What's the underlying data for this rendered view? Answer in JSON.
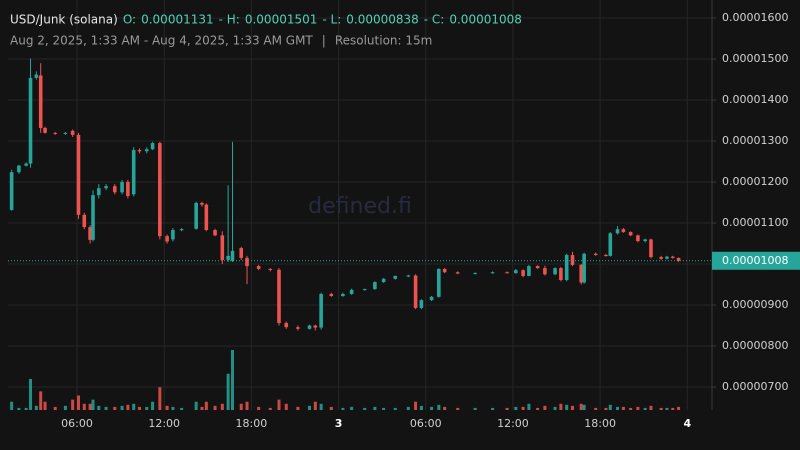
{
  "chart_data": {
    "type": "candlestick",
    "title": "USD/Junk (solana)",
    "summary": [
      {
        "label": "O:",
        "value": 1.131e-05
      },
      {
        "label": "- H:",
        "value": 1.501e-05
      },
      {
        "label": "- L:",
        "value": 8.38e-06
      },
      {
        "label": "- C:",
        "value": 1.008e-05
      }
    ],
    "range": "Aug 2, 2025, 1:33 AM - Aug 4, 2025, 1:33 AM GMT",
    "separator": "|",
    "resolution": "Resolution: 15m",
    "watermark": "defined.fi",
    "up_color": "#26a69a",
    "down_color": "#ef5350",
    "grid": true,
    "xlim": [
      1.25,
      49.7
    ],
    "xticks": [
      {
        "value": 6,
        "label": "06:00"
      },
      {
        "value": 12,
        "label": "12:00"
      },
      {
        "value": 18,
        "label": "18:00"
      },
      {
        "value": 24,
        "label": "3"
      },
      {
        "value": 30,
        "label": "06:00"
      },
      {
        "value": 36,
        "label": "12:00"
      },
      {
        "value": 42,
        "label": "18:00"
      },
      {
        "value": 48,
        "label": "4"
      }
    ],
    "ylim": [
      6.44e-06,
      1.644e-05
    ],
    "yticks": [
      {
        "value": 1.6e-05,
        "label": "0.00001600"
      },
      {
        "value": 1.5e-05,
        "label": "0.00001500"
      },
      {
        "value": 1.4e-05,
        "label": "0.00001400"
      },
      {
        "value": 1.3e-05,
        "label": "0.00001300"
      },
      {
        "value": 1.2e-05,
        "label": "0.00001200"
      },
      {
        "value": 1.1e-05,
        "label": "0.00001100"
      },
      {
        "value": 1e-05,
        "label": "0.00001000"
      },
      {
        "value": 9e-06,
        "label": "0.00000900"
      },
      {
        "value": 8e-06,
        "label": "0.00000800"
      },
      {
        "value": 7e-06,
        "label": "0.00000700"
      }
    ],
    "x": [
      1.5,
      2.0,
      2.5,
      2.8,
      3.2,
      3.5,
      3.8,
      4.5,
      5.2,
      5.7,
      6.1,
      6.5,
      6.9,
      7.1,
      7.5,
      8.0,
      8.6,
      9.1,
      9.5,
      9.9,
      10.3,
      10.8,
      11.2,
      11.7,
      12.2,
      12.6,
      13.2,
      14.2,
      14.6,
      14.9,
      15.5,
      16.0,
      16.4,
      16.7,
      17.3,
      17.7,
      18.5,
      19.3,
      19.9,
      20.4,
      21.2,
      22.0,
      22.4,
      22.8,
      23.5,
      24.3,
      24.9,
      25.8,
      26.5,
      27.1,
      27.9,
      28.8,
      29.3,
      29.7,
      30.4,
      30.9,
      31.3,
      32.2,
      33.4,
      34.6,
      35.6,
      36.2,
      36.7,
      37.1,
      37.7,
      38.2,
      38.9,
      39.3,
      39.7,
      40.1,
      40.7,
      40.9,
      41.7,
      42.4,
      42.7,
      43.2,
      43.6,
      44.1,
      44.6,
      45.1,
      45.5,
      46.2,
      46.6,
      47.0,
      47.4
    ],
    "open": [
      1.132e-05,
      1.224e-05,
      1.24e-05,
      1.245e-05,
      1.454e-05,
      1.46e-05,
      1.332e-05,
      1.32e-05,
      1.318e-05,
      1.325e-05,
      1.315e-05,
      1.12e-05,
      1.09e-05,
      1.059e-05,
      1.168e-05,
      1.185e-05,
      1.19e-05,
      1.175e-05,
      1.2e-05,
      1.17e-05,
      1.278e-05,
      1.275e-05,
      1.28e-05,
      1.295e-05,
      1.068e-05,
      1.06e-05,
      1.083e-05,
      1.086e-05,
      1.149e-05,
      1.145e-05,
      1.083e-05,
      1.07e-05,
      1.01e-05,
      1.008e-05,
      1.039e-05,
      1.015e-05,
      9.95e-06,
      9.88e-06,
      9.86e-06,
      8.56e-06,
      8.46e-06,
      8.42e-06,
      8.5e-06,
      8.45e-06,
      9.27e-06,
      9.22e-06,
      9.27e-06,
      9.37e-06,
      9.39e-06,
      9.56e-06,
      9.64e-06,
      9.71e-06,
      9.72e-06,
      8.93e-06,
      9.12e-06,
      9.2e-06,
      9.88e-06,
      9.8e-06,
      9.77e-06,
      9.78e-06,
      9.8e-06,
      9.78e-06,
      9.85e-06,
      9.71e-06,
      9.95e-06,
      9.9e-06,
      9.75e-06,
      9.9e-06,
      9.61e-06,
      1.022e-05,
      9.98e-06,
      9.55e-06,
      1.025e-05,
      1.022e-05,
      1.02e-05,
      1.075e-05,
      1.085e-05,
      1.078e-05,
      1.07e-05,
      1.056e-05,
      1.06e-05,
      1.017e-05,
      1.013e-05,
      1.018e-05,
      1.015e-05
    ],
    "high": [
      1.23e-05,
      1.242e-05,
      1.248e-05,
      1.501e-05,
      1.47e-05,
      1.49e-05,
      1.335e-05,
      1.322e-05,
      1.322e-05,
      1.328e-05,
      1.32e-05,
      1.125e-05,
      1.095e-05,
      1.18e-05,
      1.195e-05,
      1.195e-05,
      1.195e-05,
      1.205e-05,
      1.205e-05,
      1.285e-05,
      1.282e-05,
      1.285e-05,
      1.298e-05,
      1.298e-05,
      1.072e-05,
      1.088e-05,
      1.088e-05,
      1.152e-05,
      1.152e-05,
      1.148e-05,
      1.086e-05,
      1.08e-05,
      1.192e-05,
      1.298e-05,
      1.042e-05,
      1.02e-05,
      9.98e-06,
      9.9e-06,
      9.9e-06,
      8.6e-06,
      8.5e-06,
      8.52e-06,
      8.52e-06,
      9.3e-06,
      9.3e-06,
      9.3e-06,
      9.4e-06,
      9.4e-06,
      9.58e-06,
      9.66e-06,
      9.72e-06,
      9.74e-06,
      9.75e-06,
      9.14e-06,
      9.22e-06,
      9.9e-06,
      9.9e-06,
      9.82e-06,
      9.8e-06,
      9.82e-06,
      9.82e-06,
      9.88e-06,
      9.87e-06,
      9.98e-06,
      9.97e-06,
      9.96e-06,
      9.92e-06,
      9.93e-06,
      1.025e-05,
      1.03e-05,
      1e-05,
      1.028e-05,
      1.028e-05,
      1.025e-05,
      1.078e-05,
      1.093e-05,
      1.088e-05,
      1.08e-05,
      1.072e-05,
      1.062e-05,
      1.062e-05,
      1.02e-05,
      1.02e-05,
      1.02e-05,
      1.016e-05
    ],
    "low": [
      1.13e-05,
      1.22e-05,
      1.238e-05,
      1.235e-05,
      1.45e-05,
      1.32e-05,
      1.318e-05,
      1.315e-05,
      1.315e-05,
      1.31e-05,
      1.11e-05,
      1.085e-05,
      1.05e-05,
      1.055e-05,
      1.16e-05,
      1.18e-05,
      1.17e-05,
      1.17e-05,
      1.16e-05,
      1.165e-05,
      1.27e-05,
      1.27e-05,
      1.278e-05,
      1.06e-05,
      1.05e-05,
      1.055e-05,
      1.08e-05,
      1.084e-05,
      1.14e-05,
      1.08e-05,
      1.068e-05,
      1e-05,
      1.005e-05,
      1.005e-05,
      1.01e-05,
      9.51e-06,
      9.85e-06,
      9.82e-06,
      8.5e-06,
      8.42e-06,
      8.38e-06,
      8.4e-06,
      8.38e-06,
      8.4e-06,
      9.2e-06,
      9.2e-06,
      9.25e-06,
      9.35e-06,
      9.37e-06,
      9.54e-06,
      9.62e-06,
      9.68e-06,
      8.9e-06,
      8.9e-06,
      9.1e-06,
      9.18e-06,
      9.78e-06,
      9.75e-06,
      9.75e-06,
      9.76e-06,
      9.77e-06,
      9.76e-06,
      9.68e-06,
      9.7e-06,
      9.88e-06,
      9.72e-06,
      9.73e-06,
      9.58e-06,
      9.58e-06,
      9.95e-06,
      9.5e-06,
      9.52e-06,
      1.02e-05,
      1.018e-05,
      1.018e-05,
      1.072e-05,
      1.076e-05,
      1.068e-05,
      1.053e-05,
      1.053e-05,
      1.014e-05,
      1.01e-05,
      1.011e-05,
      1.013e-05,
      1.005e-05
    ],
    "close": [
      1.224e-05,
      1.24e-05,
      1.245e-05,
      1.454e-05,
      1.462e-05,
      1.332e-05,
      1.32e-05,
      1.318e-05,
      1.32e-05,
      1.315e-05,
      1.12e-05,
      1.09e-05,
      1.059e-05,
      1.168e-05,
      1.185e-05,
      1.19e-05,
      1.175e-05,
      1.2e-05,
      1.166e-05,
      1.278e-05,
      1.275e-05,
      1.28e-05,
      1.295e-05,
      1.068e-05,
      1.055e-05,
      1.083e-05,
      1.085e-05,
      1.149e-05,
      1.145e-05,
      1.083e-05,
      1.07e-05,
      1.01e-05,
      1.02e-05,
      1.032e-05,
      1.015e-05,
      9.95e-06,
      9.88e-06,
      9.86e-06,
      8.56e-06,
      8.46e-06,
      8.42e-06,
      8.5e-06,
      8.45e-06,
      9.27e-06,
      9.22e-06,
      9.27e-06,
      9.37e-06,
      9.39e-06,
      9.56e-06,
      9.64e-06,
      9.71e-06,
      9.72e-06,
      8.93e-06,
      9.12e-06,
      9.2e-06,
      9.88e-06,
      9.8e-06,
      9.77e-06,
      9.78e-06,
      9.8e-06,
      9.78e-06,
      9.85e-06,
      9.71e-06,
      9.95e-06,
      9.9e-06,
      9.75e-06,
      9.9e-06,
      9.61e-06,
      1.022e-05,
      9.98e-06,
      9.55e-06,
      1.025e-05,
      1.022e-05,
      1.02e-05,
      1.075e-05,
      1.085e-05,
      1.078e-05,
      1.07e-05,
      1.056e-05,
      1.06e-05,
      1.017e-05,
      1.013e-05,
      1.018e-05,
      1.015e-05,
      1.008e-05
    ],
    "volume": [
      8,
      2,
      2,
      30,
      4,
      18,
      8,
      3,
      4,
      10,
      14,
      6,
      6,
      10,
      4,
      3,
      3,
      4,
      5,
      6,
      3,
      3,
      8,
      22,
      4,
      3,
      2,
      8,
      3,
      8,
      4,
      6,
      35,
      58,
      6,
      8,
      3,
      2,
      10,
      6,
      3,
      4,
      8,
      6,
      3,
      2,
      3,
      2,
      3,
      2,
      2,
      3,
      8,
      4,
      3,
      5,
      3,
      2,
      2,
      2,
      2,
      3,
      3,
      6,
      2,
      4,
      3,
      6,
      5,
      4,
      6,
      5,
      2,
      2,
      5,
      3,
      3,
      2,
      3,
      2,
      4,
      2,
      2,
      2,
      3
    ]
  }
}
